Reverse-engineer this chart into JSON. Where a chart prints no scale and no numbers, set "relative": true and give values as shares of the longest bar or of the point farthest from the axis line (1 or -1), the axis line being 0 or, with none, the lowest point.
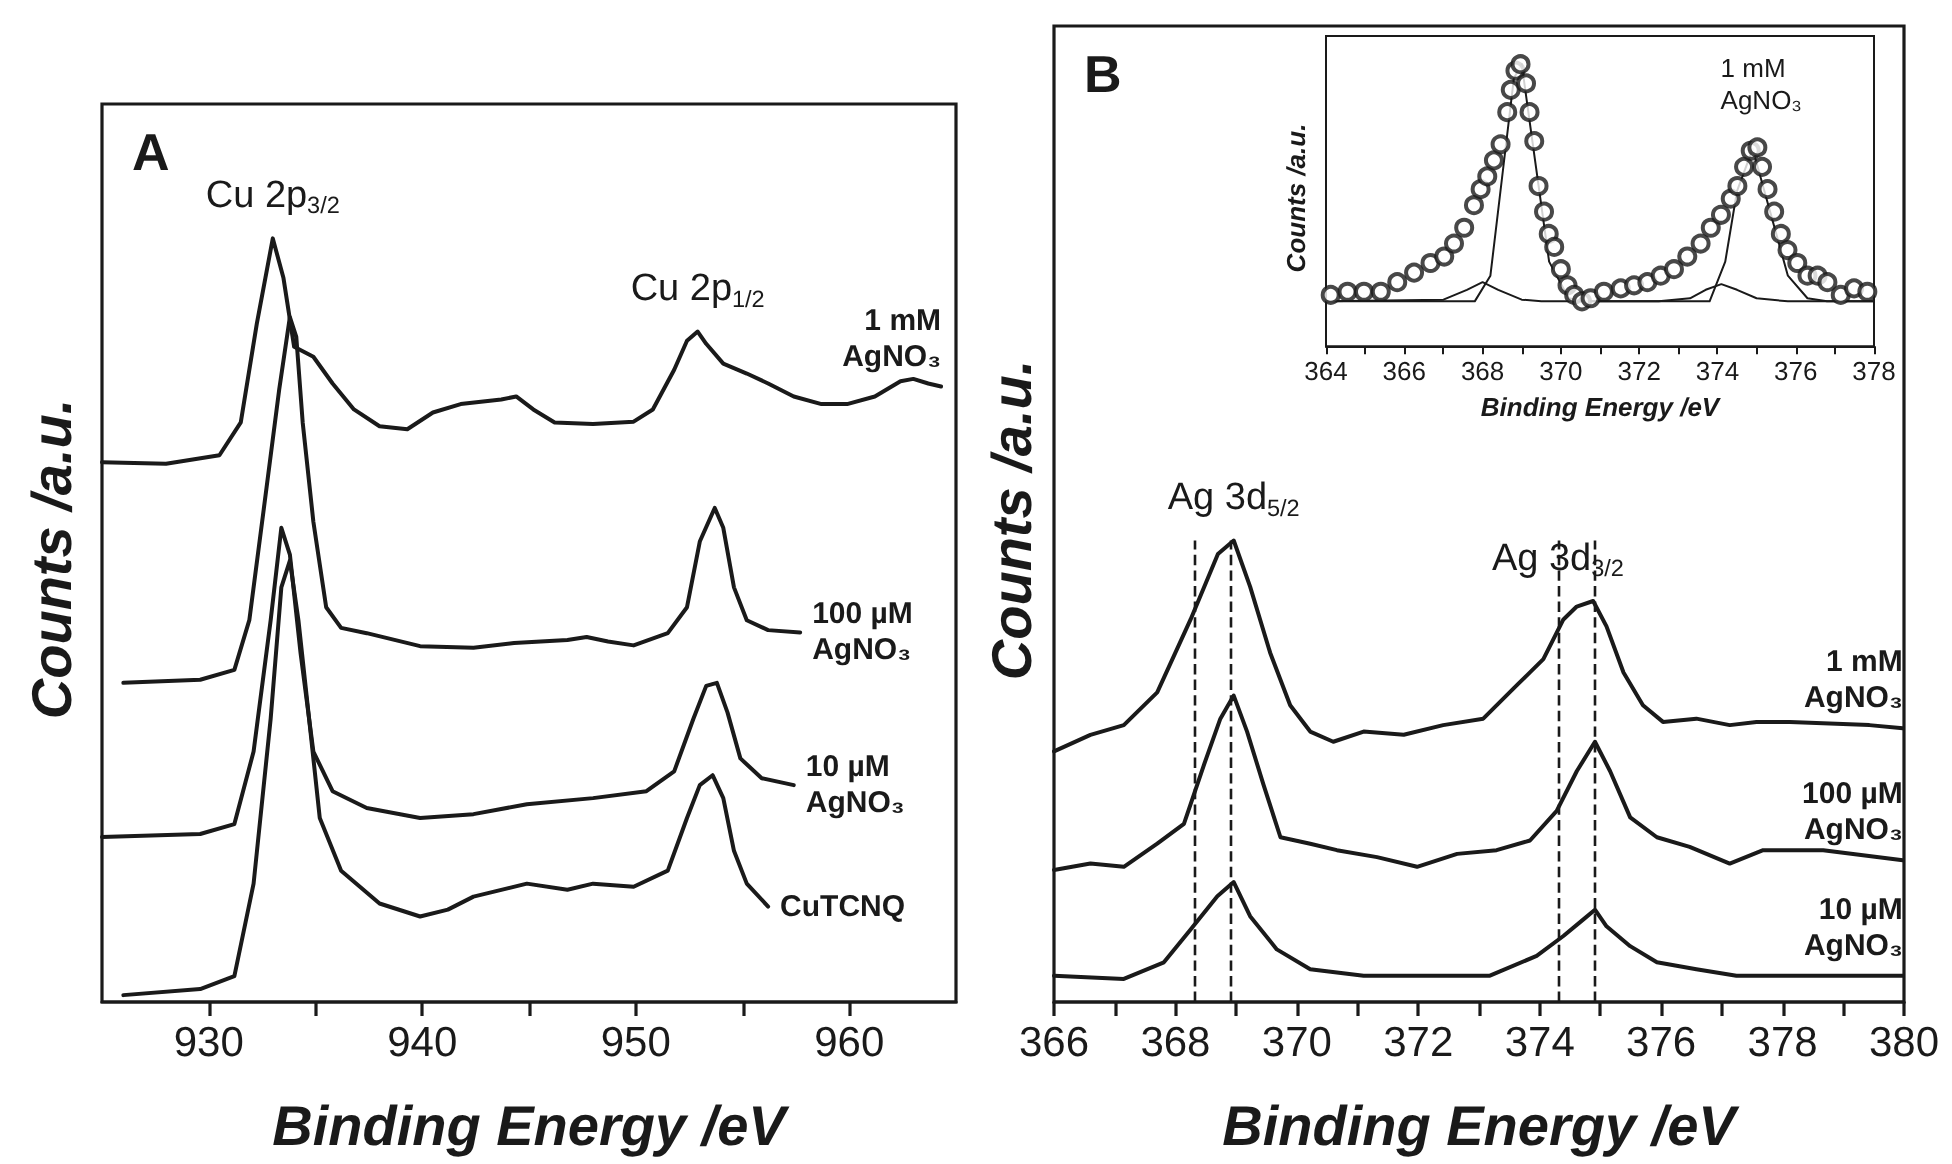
{
  "chart_data": [
    {
      "type": "line",
      "title": "A",
      "xlabel": "Binding Energy /eV",
      "ylabel": "Counts /a.u.",
      "relative": true,
      "xlim": [
        925,
        965
      ],
      "xticks": [
        930,
        {
          "value": 935,
          "label": null
        },
        940,
        {
          "value": 945,
          "label": null
        },
        950,
        {
          "value": 955,
          "label": null
        },
        960
      ],
      "tick_labels": "x",
      "legend": false,
      "grid": false,
      "marker": "none",
      "line_style": "solid",
      "annotations": [
        {
          "text": "Cu 2p$_{3/2}$",
          "x": 933.0,
          "y": 1.0
        },
        {
          "text": "Cu 2p$_{1/2}$",
          "x": 952.9,
          "y": 0.878
        }
      ],
      "series": [
        {
          "name": "1 mM AgNO₃",
          "color": "#1a1a1a",
          "x": [
            925.0,
            928.0,
            930.5,
            931.5,
            932.25,
            933.0,
            933.5,
            934.0,
            934.9,
            935.8,
            936.8,
            938.0,
            939.3,
            940.5,
            941.8,
            943.7,
            944.4,
            945.2,
            946.2,
            948.0,
            949.9,
            950.8,
            951.8,
            952.4,
            952.9,
            953.3,
            954.1,
            955.2,
            956.2,
            957.4,
            958.7,
            959.9,
            961.2,
            962.4,
            963.0,
            963.7,
            964.3
          ],
          "values": [
            0.707,
            0.705,
            0.716,
            0.759,
            0.888,
            1.0,
            0.948,
            0.858,
            0.845,
            0.81,
            0.776,
            0.754,
            0.75,
            0.772,
            0.783,
            0.789,
            0.793,
            0.776,
            0.759,
            0.757,
            0.76,
            0.776,
            0.828,
            0.866,
            0.878,
            0.862,
            0.836,
            0.823,
            0.81,
            0.793,
            0.783,
            0.783,
            0.793,
            0.813,
            0.816,
            0.81,
            0.806
          ]
        },
        {
          "name": "100 µM AgNO₃",
          "color": "#1a1a1a",
          "x": [
            926.0,
            929.6,
            931.2,
            931.9,
            932.7,
            933.3,
            933.8,
            934.1,
            934.4,
            934.9,
            935.5,
            936.2,
            937.4,
            939.9,
            942.4,
            944.3,
            946.8,
            947.7,
            948.7,
            949.9,
            951.5,
            952.4,
            953.0,
            953.7,
            954.1,
            954.6,
            955.2,
            956.2,
            957.7
          ],
          "values": [
            0.418,
            0.422,
            0.435,
            0.5,
            0.672,
            0.802,
            0.897,
            0.871,
            0.759,
            0.629,
            0.517,
            0.49,
            0.483,
            0.466,
            0.464,
            0.47,
            0.474,
            0.478,
            0.472,
            0.467,
            0.483,
            0.517,
            0.603,
            0.647,
            0.621,
            0.543,
            0.5,
            0.487,
            0.484
          ]
        },
        {
          "name": "10 µM AgNO₃",
          "color": "#1a1a1a",
          "x": [
            925.0,
            929.6,
            931.2,
            932.1,
            932.9,
            933.4,
            933.8,
            934.3,
            934.9,
            935.8,
            937.4,
            939.9,
            942.4,
            944.9,
            948.0,
            950.5,
            951.8,
            952.7,
            953.3,
            953.8,
            954.3,
            954.9,
            955.9,
            957.4
          ],
          "values": [
            0.216,
            0.22,
            0.233,
            0.328,
            0.5,
            0.621,
            0.586,
            0.457,
            0.328,
            0.276,
            0.254,
            0.241,
            0.246,
            0.259,
            0.267,
            0.276,
            0.302,
            0.371,
            0.414,
            0.418,
            0.379,
            0.319,
            0.293,
            0.284
          ]
        },
        {
          "name": "CuTCNQ",
          "color": "#1a1a1a",
          "x": [
            926.0,
            929.6,
            931.2,
            932.1,
            932.9,
            933.4,
            933.8,
            934.2,
            934.7,
            935.2,
            936.2,
            938.0,
            939.9,
            941.2,
            942.4,
            944.9,
            946.8,
            948.0,
            949.9,
            951.5,
            952.4,
            953.0,
            953.6,
            954.1,
            954.6,
            955.2,
            956.2
          ],
          "values": [
            0.009,
            0.017,
            0.034,
            0.155,
            0.371,
            0.543,
            0.578,
            0.5,
            0.371,
            0.241,
            0.172,
            0.129,
            0.112,
            0.121,
            0.138,
            0.155,
            0.147,
            0.155,
            0.151,
            0.172,
            0.241,
            0.284,
            0.297,
            0.267,
            0.198,
            0.155,
            0.125
          ]
        }
      ]
    },
    {
      "type": "line",
      "title": "B",
      "xlabel": "Binding Energy /eV",
      "ylabel": "Counts /a.u.",
      "relative": true,
      "xlim": [
        366,
        380
      ],
      "xticks": [
        366,
        {
          "value": 367,
          "label": null
        },
        368,
        {
          "value": 369,
          "label": null
        },
        370,
        {
          "value": 371,
          "label": null
        },
        372,
        {
          "value": 373,
          "label": null
        },
        374,
        {
          "value": 375,
          "label": null
        },
        376,
        {
          "value": 377,
          "label": null
        },
        378,
        {
          "value": 379,
          "label": null
        },
        380
      ],
      "tick_labels": "x",
      "legend": false,
      "grid": false,
      "marker": "none",
      "line_style": "solid",
      "annotations": [
        {
          "text": "Ag 3d$_{5/2}$",
          "x": 368.96,
          "y": 1.0
        },
        {
          "text": "Ag 3d$_{3/2}$",
          "x": 374.3,
          "y": 0.869
        }
      ],
      "ref_lines": [
        {
          "axis": "x",
          "value": 368.3,
          "color": "#1a1a1a",
          "line_style": "dashed"
        },
        {
          "axis": "x",
          "value": 368.9,
          "color": "#1a1a1a",
          "line_style": "dashed"
        },
        {
          "axis": "x",
          "value": 374.3,
          "color": "#1a1a1a",
          "line_style": "dashed"
        },
        {
          "axis": "x",
          "value": 374.9,
          "color": "#1a1a1a",
          "line_style": "dashed"
        }
      ],
      "series": [
        {
          "name": "1 mM AgNO₃",
          "color": "#1a1a1a",
          "x": [
            366.0,
            366.6,
            367.15,
            367.7,
            368.25,
            368.7,
            368.96,
            369.23,
            369.56,
            369.89,
            370.22,
            370.6,
            371.1,
            371.76,
            372.41,
            373.07,
            373.62,
            374.06,
            374.39,
            374.61,
            374.88,
            375.1,
            375.38,
            375.7,
            376.03,
            376.58,
            377.13,
            377.57,
            378.12,
            379.43,
            379.98
          ],
          "values": [
            0.543,
            0.579,
            0.6,
            0.671,
            0.829,
            0.971,
            1.0,
            0.9,
            0.757,
            0.643,
            0.586,
            0.564,
            0.586,
            0.579,
            0.6,
            0.614,
            0.686,
            0.743,
            0.829,
            0.857,
            0.869,
            0.814,
            0.714,
            0.643,
            0.607,
            0.614,
            0.6,
            0.607,
            0.607,
            0.6,
            0.593
          ]
        },
        {
          "name": "100 µM AgNO₃",
          "color": "#1a1a1a",
          "x": [
            366.0,
            366.6,
            367.15,
            367.7,
            368.14,
            368.47,
            368.74,
            368.96,
            369.18,
            369.45,
            369.73,
            370.22,
            370.66,
            371.32,
            371.98,
            372.64,
            373.29,
            373.84,
            374.28,
            374.61,
            374.91,
            375.16,
            375.49,
            375.93,
            376.47,
            377.13,
            377.68,
            378.67,
            379.98
          ],
          "values": [
            0.286,
            0.3,
            0.293,
            0.343,
            0.386,
            0.514,
            0.614,
            0.664,
            0.586,
            0.471,
            0.357,
            0.343,
            0.329,
            0.314,
            0.293,
            0.321,
            0.329,
            0.35,
            0.414,
            0.5,
            0.564,
            0.5,
            0.4,
            0.357,
            0.336,
            0.3,
            0.329,
            0.329,
            0.307
          ]
        },
        {
          "name": "10 µM AgNO₃",
          "color": "#1a1a1a",
          "x": [
            366.0,
            367.15,
            367.81,
            368.25,
            368.69,
            368.96,
            369.23,
            369.67,
            370.22,
            371.1,
            372.08,
            373.18,
            373.95,
            374.39,
            374.72,
            374.91,
            375.1,
            375.49,
            375.93,
            376.58,
            377.24,
            378.12,
            379.98
          ],
          "values": [
            0.057,
            0.05,
            0.086,
            0.157,
            0.229,
            0.26,
            0.186,
            0.114,
            0.071,
            0.057,
            0.057,
            0.057,
            0.1,
            0.143,
            0.179,
            0.2,
            0.164,
            0.121,
            0.086,
            0.071,
            0.057,
            0.057,
            0.057
          ]
        }
      ]
    },
    {
      "type": "scatter",
      "xlabel": "Binding Energy /eV",
      "ylabel": "Counts /a.u.",
      "relative": true,
      "xlim": [
        364,
        378
      ],
      "xticks": [
        364,
        {
          "value": 365,
          "label": null
        },
        366,
        {
          "value": 367,
          "label": null
        },
        368,
        {
          "value": 369,
          "label": null
        },
        370,
        {
          "value": 371,
          "label": null
        },
        372,
        {
          "value": 373,
          "label": null
        },
        374,
        {
          "value": 375,
          "label": null
        },
        376,
        {
          "value": 377,
          "label": null
        },
        378
      ],
      "tick_labels": "x",
      "legend": false,
      "grid": false,
      "annotations": [
        "1 mM AgNO₃"
      ],
      "series": [
        {
          "marker": "circle",
          "color": "#1a1a1a",
          "x": [
            364.12,
            364.55,
            364.97,
            365.4,
            365.82,
            366.25,
            366.67,
            367.02,
            367.27,
            367.53,
            367.78,
            367.95,
            368.12,
            368.29,
            368.46,
            368.63,
            368.72,
            368.84,
            368.97,
            369.11,
            369.2,
            369.32,
            369.43,
            369.57,
            369.69,
            369.83,
            370.0,
            370.17,
            370.34,
            370.54,
            370.76,
            371.1,
            371.53,
            371.87,
            372.21,
            372.55,
            372.89,
            373.23,
            373.57,
            373.83,
            374.09,
            374.34,
            374.51,
            374.68,
            374.85,
            375.02,
            375.14,
            375.28,
            375.45,
            375.62,
            375.79,
            376.04,
            376.3,
            376.56,
            376.81,
            377.15,
            377.49,
            377.83
          ],
          "values": [
            0.182,
            0.193,
            0.193,
            0.193,
            0.227,
            0.261,
            0.295,
            0.318,
            0.364,
            0.42,
            0.5,
            0.557,
            0.602,
            0.659,
            0.716,
            0.83,
            0.909,
            0.977,
            1.0,
            0.932,
            0.83,
            0.727,
            0.568,
            0.477,
            0.398,
            0.352,
            0.273,
            0.216,
            0.182,
            0.159,
            0.17,
            0.193,
            0.205,
            0.216,
            0.227,
            0.25,
            0.273,
            0.318,
            0.364,
            0.42,
            0.466,
            0.523,
            0.568,
            0.636,
            0.693,
            0.705,
            0.636,
            0.557,
            0.477,
            0.398,
            0.341,
            0.295,
            0.25,
            0.25,
            0.227,
            0.182,
            0.205,
            0.193
          ]
        },
        {
          "type": "line",
          "line_style": "solid",
          "color": "#1a1a1a",
          "x": [
            364,
            367.8,
            368.2,
            368.5,
            368.8,
            369.0,
            369.3,
            369.7,
            370.2,
            370.6,
            373.8,
            374.2,
            374.5,
            374.9,
            375.3,
            375.8,
            376.3,
            376.8,
            378
          ],
          "values": [
            0.159,
            0.159,
            0.25,
            0.6,
            0.95,
            1.0,
            0.7,
            0.3,
            0.17,
            0.159,
            0.159,
            0.3,
            0.55,
            0.7,
            0.5,
            0.25,
            0.17,
            0.159,
            0.159
          ]
        },
        {
          "type": "line",
          "line_style": "solid",
          "color": "#1a1a1a",
          "x": [
            364,
            367.0,
            367.6,
            368.0,
            368.4,
            369.0,
            369.5,
            372.5,
            373.3,
            373.7,
            374.1,
            374.5,
            375.0,
            375.8,
            378
          ],
          "values": [
            0.159,
            0.165,
            0.2,
            0.227,
            0.2,
            0.165,
            0.159,
            0.159,
            0.17,
            0.2,
            0.22,
            0.2,
            0.17,
            0.159,
            0.159
          ]
        }
      ]
    }
  ]
}
